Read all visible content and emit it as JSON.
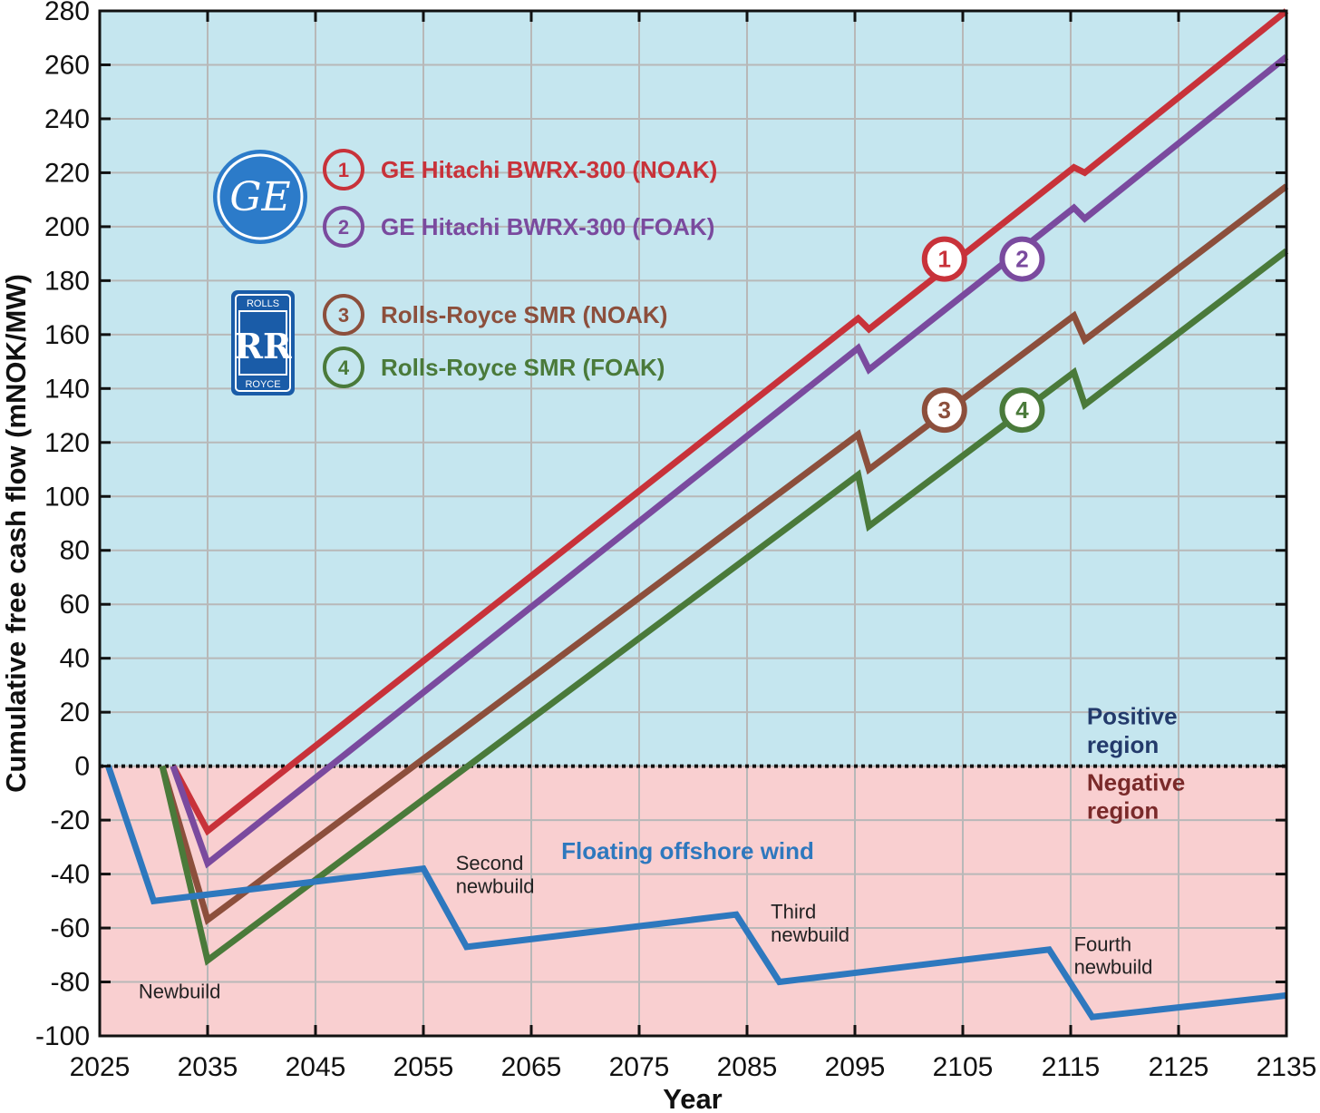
{
  "chart_data": {
    "type": "line",
    "xlabel": "Year",
    "ylabel": "Cumulative free cash flow (mNOK/MW)",
    "xlim": [
      2025,
      2135
    ],
    "ylim": [
      -100,
      280
    ],
    "xticks": [
      2025,
      2035,
      2045,
      2055,
      2065,
      2075,
      2085,
      2095,
      2105,
      2115,
      2125,
      2135
    ],
    "yticks": [
      280,
      260,
      240,
      220,
      200,
      180,
      160,
      140,
      120,
      100,
      80,
      60,
      40,
      20,
      0,
      -20,
      -40,
      -60,
      -80,
      -100
    ],
    "grid": true,
    "positive_region_color": "#c5e6ef",
    "negative_region_color": "#f9cfd0",
    "series": [
      {
        "id": "1",
        "name": "GE Hitachi BWRX-300 (NOAK)",
        "color": "#c8323a",
        "x": [
          2031.8,
          2035,
          2095.3,
          2096.3,
          2115.3,
          2116.3,
          2135
        ],
        "y": [
          0,
          -24,
          166,
          162,
          222,
          220,
          280
        ]
      },
      {
        "id": "2",
        "name": "GE Hitachi BWRX-300 (FOAK)",
        "color": "#7a4a9e",
        "x": [
          2031.8,
          2035,
          2095.3,
          2096.3,
          2115.3,
          2116.3,
          2135
        ],
        "y": [
          0,
          -36,
          155,
          147,
          207,
          203,
          263
        ]
      },
      {
        "id": "3",
        "name": "Rolls-Royce SMR (NOAK)",
        "color": "#8c4f3c",
        "x": [
          2030.8,
          2035,
          2095.3,
          2096.3,
          2115.3,
          2116.3,
          2135
        ],
        "y": [
          0,
          -57,
          123,
          110,
          167,
          158,
          215
        ]
      },
      {
        "id": "4",
        "name": "Rolls-Royce SMR (FOAK)",
        "color": "#4a7a3a",
        "x": [
          2030.8,
          2035,
          2095.3,
          2096.3,
          2115.3,
          2116.3,
          2135
        ],
        "y": [
          0,
          -72,
          108,
          89,
          146,
          134,
          191
        ]
      },
      {
        "id": "wind",
        "name": "Floating offshore wind",
        "color": "#2e78be",
        "x": [
          2025.8,
          2030,
          2055,
          2059,
          2084,
          2088,
          2113,
          2117,
          2135
        ],
        "y": [
          0,
          -50,
          -38,
          -67,
          -55,
          -80,
          -68,
          -93,
          -85
        ]
      }
    ],
    "series_markers": [
      {
        "id": "1",
        "x": 2103.3,
        "y": 188
      },
      {
        "id": "2",
        "x": 2110.5,
        "y": 188
      },
      {
        "id": "3",
        "x": 2103.3,
        "y": 132
      },
      {
        "id": "4",
        "x": 2110.5,
        "y": 132
      }
    ],
    "annotations": [
      {
        "text": "Newbuild",
        "x": 2028.6,
        "y": -86
      },
      {
        "text": "Second",
        "x": 2058.0,
        "y": -38.5
      },
      {
        "text": "newbuild",
        "x": 2058.0,
        "y": -47
      },
      {
        "text": "Third",
        "x": 2087.2,
        "y": -56.5
      },
      {
        "text": "newbuild",
        "x": 2087.2,
        "y": -65
      },
      {
        "text": "Fourth",
        "x": 2115.3,
        "y": -68.5
      },
      {
        "text": "newbuild",
        "x": 2115.3,
        "y": -77
      }
    ],
    "wind_label": "Floating offshore wind",
    "positive_label": [
      "Positive",
      "region"
    ],
    "negative_label": [
      "Negative",
      "region"
    ],
    "logos": [
      {
        "name": "ge-logo",
        "text": "GE"
      },
      {
        "name": "rolls-royce-logo",
        "text_top": "ROLLS",
        "monogram": "RR",
        "text_bottom": "ROYCE"
      }
    ]
  }
}
